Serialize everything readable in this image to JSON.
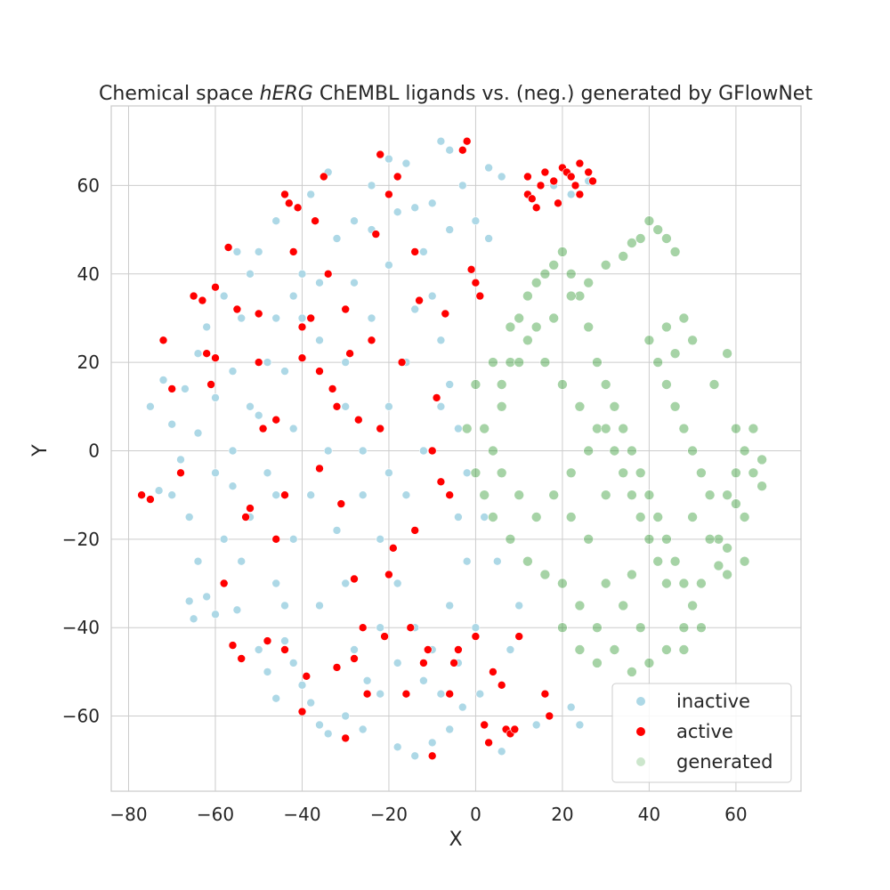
{
  "chart_data": {
    "type": "scatter",
    "title_prefix": "Chemical space ",
    "title_italic": "hERG",
    "title_suffix": " ChEMBL ligands vs. (neg.) generated by GFlowNet",
    "xlabel": "X",
    "ylabel": "Y",
    "xlim": [
      -84,
      75
    ],
    "ylim": [
      -77,
      78
    ],
    "xticks": [
      -80,
      -60,
      -40,
      -20,
      0,
      20,
      40,
      60
    ],
    "yticks": [
      -60,
      -40,
      -20,
      0,
      20,
      40,
      60
    ],
    "xtick_labels": [
      "−80",
      "−60",
      "−40",
      "−20",
      "0",
      "20",
      "40",
      "60"
    ],
    "ytick_labels": [
      "−60",
      "−40",
      "−20",
      "0",
      "20",
      "40",
      "60"
    ],
    "grid": true,
    "legend_position": "lower-right",
    "series": [
      {
        "name": "inactive",
        "color": "#add8e6"
      },
      {
        "name": "active",
        "color": "#ff0000"
      },
      {
        "name": "generated",
        "color": "#008000"
      }
    ],
    "points": {
      "inactive": [
        [
          -75,
          10
        ],
        [
          -72,
          16
        ],
        [
          -70,
          6
        ],
        [
          -68,
          -5
        ],
        [
          -66,
          -15
        ],
        [
          -64,
          -25
        ],
        [
          -62,
          -33
        ],
        [
          -60,
          -37
        ],
        [
          -58,
          -20
        ],
        [
          -56,
          -8
        ],
        [
          -54,
          30
        ],
        [
          -52,
          40
        ],
        [
          -50,
          45
        ],
        [
          -48,
          20
        ],
        [
          -46,
          -30
        ],
        [
          -44,
          -43
        ],
        [
          -42,
          -48
        ],
        [
          -40,
          -53
        ],
        [
          -38,
          -57
        ],
        [
          -36,
          -62
        ],
        [
          -34,
          -64
        ],
        [
          -30,
          -60
        ],
        [
          -26,
          -63
        ],
        [
          -22,
          -55
        ],
        [
          -18,
          -67
        ],
        [
          -14,
          -69
        ],
        [
          -10,
          -66
        ],
        [
          -6,
          -63
        ],
        [
          -3,
          -58
        ],
        [
          1,
          -55
        ],
        [
          4,
          -50
        ],
        [
          8,
          -45
        ],
        [
          10,
          -35
        ],
        [
          5,
          -25
        ],
        [
          2,
          -15
        ],
        [
          -2,
          -5
        ],
        [
          -4,
          5
        ],
        [
          -6,
          15
        ],
        [
          -8,
          25
        ],
        [
          -10,
          35
        ],
        [
          -12,
          45
        ],
        [
          -14,
          55
        ],
        [
          -16,
          65
        ],
        [
          -6,
          68
        ],
        [
          -3,
          60
        ],
        [
          0,
          52
        ],
        [
          3,
          48
        ],
        [
          6,
          62
        ],
        [
          -24,
          60
        ],
        [
          -28,
          52
        ],
        [
          -32,
          48
        ],
        [
          -36,
          38
        ],
        [
          -40,
          30
        ],
        [
          -44,
          18
        ],
        [
          -50,
          8
        ],
        [
          -56,
          0
        ],
        [
          -60,
          -5
        ],
        [
          -64,
          4
        ],
        [
          -67,
          14
        ],
        [
          -70,
          -10
        ],
        [
          -73,
          -9
        ],
        [
          -62,
          28
        ],
        [
          -58,
          35
        ],
        [
          -55,
          45
        ],
        [
          -46,
          52
        ],
        [
          -38,
          58
        ],
        [
          -34,
          63
        ],
        [
          -20,
          66
        ],
        [
          -8,
          70
        ],
        [
          3,
          64
        ],
        [
          12,
          62
        ],
        [
          18,
          60
        ],
        [
          22,
          58
        ],
        [
          26,
          61
        ],
        [
          -30,
          10
        ],
        [
          -26,
          -10
        ],
        [
          -22,
          -20
        ],
        [
          -18,
          -30
        ],
        [
          -14,
          -40
        ],
        [
          -10,
          -45
        ],
        [
          -20,
          10
        ],
        [
          -16,
          20
        ],
        [
          -12,
          0
        ],
        [
          -24,
          30
        ],
        [
          -34,
          0
        ],
        [
          -38,
          -10
        ],
        [
          -42,
          -20
        ],
        [
          -46,
          -10
        ],
        [
          -30,
          -30
        ],
        [
          -28,
          -45
        ],
        [
          -25,
          -52
        ],
        [
          -12,
          -52
        ],
        [
          -4,
          -48
        ],
        [
          0,
          -40
        ],
        [
          -6,
          -35
        ],
        [
          -16,
          -10
        ],
        [
          -20,
          -5
        ],
        [
          -30,
          20
        ],
        [
          -36,
          25
        ],
        [
          -42,
          5
        ],
        [
          -48,
          -5
        ],
        [
          -52,
          -15
        ],
        [
          -54,
          -25
        ],
        [
          -40,
          40
        ],
        [
          -28,
          38
        ],
        [
          -20,
          42
        ],
        [
          -14,
          32
        ],
        [
          -8,
          10
        ],
        [
          -2,
          -25
        ],
        [
          -4,
          -15
        ],
        [
          -26,
          0
        ],
        [
          -32,
          -18
        ],
        [
          -36,
          -35
        ],
        [
          -44,
          -35
        ],
        [
          -22,
          -40
        ],
        [
          -18,
          -48
        ],
        [
          -8,
          -55
        ],
        [
          2,
          -62
        ],
        [
          6,
          -68
        ],
        [
          14,
          -62
        ],
        [
          22,
          -58
        ],
        [
          24,
          -62
        ],
        [
          -65,
          -38
        ],
        [
          -66,
          -34
        ],
        [
          -58,
          -30
        ],
        [
          -55,
          -36
        ],
        [
          -50,
          -45
        ],
        [
          -48,
          -50
        ],
        [
          -46,
          -56
        ],
        [
          -64,
          22
        ],
        [
          -68,
          -2
        ],
        [
          -60,
          12
        ],
        [
          -56,
          18
        ],
        [
          -52,
          10
        ],
        [
          -46,
          30
        ],
        [
          -42,
          35
        ],
        [
          -24,
          50
        ],
        [
          -18,
          54
        ],
        [
          -10,
          56
        ],
        [
          -6,
          50
        ]
      ],
      "active": [
        [
          -77,
          -10
        ],
        [
          -75,
          -11
        ],
        [
          -72,
          25
        ],
        [
          -70,
          14
        ],
        [
          -68,
          -5
        ],
        [
          -65,
          35
        ],
        [
          -63,
          34
        ],
        [
          -62,
          22
        ],
        [
          -61,
          15
        ],
        [
          -60,
          21
        ],
        [
          -60,
          37
        ],
        [
          -58,
          -30
        ],
        [
          -57,
          46
        ],
        [
          -56,
          -44
        ],
        [
          -55,
          32
        ],
        [
          -54,
          -47
        ],
        [
          -53,
          -15
        ],
        [
          -52,
          -13
        ],
        [
          -50,
          31
        ],
        [
          -49,
          5
        ],
        [
          -48,
          -43
        ],
        [
          -46,
          -20
        ],
        [
          -44,
          -45
        ],
        [
          -44,
          58
        ],
        [
          -43,
          56
        ],
        [
          -42,
          45
        ],
        [
          -41,
          55
        ],
        [
          -40,
          28
        ],
        [
          -40,
          -59
        ],
        [
          -39,
          -51
        ],
        [
          -38,
          30
        ],
        [
          -37,
          52
        ],
        [
          -36,
          18
        ],
        [
          -35,
          62
        ],
        [
          -34,
          40
        ],
        [
          -33,
          14
        ],
        [
          -32,
          -49
        ],
        [
          -31,
          -12
        ],
        [
          -30,
          32
        ],
        [
          -30,
          -65
        ],
        [
          -29,
          22
        ],
        [
          -28,
          -47
        ],
        [
          -27,
          7
        ],
        [
          -26,
          -40
        ],
        [
          -25,
          -55
        ],
        [
          -24,
          25
        ],
        [
          -23,
          49
        ],
        [
          -22,
          67
        ],
        [
          -21,
          -42
        ],
        [
          -20,
          58
        ],
        [
          -19,
          -22
        ],
        [
          -18,
          62
        ],
        [
          -17,
          20
        ],
        [
          -16,
          -55
        ],
        [
          -15,
          -40
        ],
        [
          -14,
          45
        ],
        [
          -13,
          34
        ],
        [
          -12,
          -48
        ],
        [
          -11,
          -45
        ],
        [
          -10,
          -69
        ],
        [
          -9,
          12
        ],
        [
          -8,
          -7
        ],
        [
          -7,
          31
        ],
        [
          -6,
          -55
        ],
        [
          -5,
          -48
        ],
        [
          -4,
          -45
        ],
        [
          -3,
          68
        ],
        [
          -2,
          70
        ],
        [
          -1,
          41
        ],
        [
          0,
          38
        ],
        [
          0,
          -42
        ],
        [
          1,
          35
        ],
        [
          2,
          -62
        ],
        [
          3,
          -66
        ],
        [
          4,
          -50
        ],
        [
          6,
          -53
        ],
        [
          7,
          -63
        ],
        [
          8,
          -64
        ],
        [
          9,
          -63
        ],
        [
          10,
          -42
        ],
        [
          12,
          62
        ],
        [
          12,
          58
        ],
        [
          13,
          57
        ],
        [
          14,
          55
        ],
        [
          15,
          60
        ],
        [
          16,
          63
        ],
        [
          16,
          -55
        ],
        [
          17,
          -60
        ],
        [
          18,
          61
        ],
        [
          19,
          56
        ],
        [
          20,
          64
        ],
        [
          21,
          63
        ],
        [
          22,
          62
        ],
        [
          23,
          60
        ],
        [
          24,
          65
        ],
        [
          24,
          58
        ],
        [
          26,
          63
        ],
        [
          27,
          61
        ],
        [
          -40,
          21
        ],
        [
          -46,
          7
        ],
        [
          -36,
          -4
        ],
        [
          -28,
          -29
        ],
        [
          -20,
          -28
        ],
        [
          -14,
          -18
        ],
        [
          -6,
          -10
        ],
        [
          -10,
          0
        ],
        [
          -22,
          5
        ],
        [
          -32,
          10
        ],
        [
          -50,
          20
        ],
        [
          -44,
          -10
        ]
      ],
      "generated": [
        [
          2,
          -10
        ],
        [
          4,
          0
        ],
        [
          6,
          10
        ],
        [
          8,
          20
        ],
        [
          10,
          30
        ],
        [
          12,
          35
        ],
        [
          14,
          38
        ],
        [
          16,
          40
        ],
        [
          18,
          42
        ],
        [
          20,
          45
        ],
        [
          22,
          40
        ],
        [
          24,
          35
        ],
        [
          26,
          28
        ],
        [
          28,
          20
        ],
        [
          30,
          15
        ],
        [
          32,
          10
        ],
        [
          34,
          5
        ],
        [
          36,
          0
        ],
        [
          38,
          -5
        ],
        [
          40,
          -10
        ],
        [
          42,
          -15
        ],
        [
          44,
          -20
        ],
        [
          46,
          -25
        ],
        [
          48,
          -30
        ],
        [
          50,
          -35
        ],
        [
          52,
          -40
        ],
        [
          48,
          -45
        ],
        [
          44,
          -45
        ],
        [
          40,
          -48
        ],
        [
          36,
          -50
        ],
        [
          32,
          -45
        ],
        [
          28,
          -40
        ],
        [
          24,
          -35
        ],
        [
          20,
          -30
        ],
        [
          16,
          -28
        ],
        [
          12,
          -25
        ],
        [
          8,
          -20
        ],
        [
          4,
          -15
        ],
        [
          0,
          -5
        ],
        [
          -2,
          5
        ],
        [
          0,
          15
        ],
        [
          4,
          20
        ],
        [
          8,
          28
        ],
        [
          12,
          25
        ],
        [
          16,
          20
        ],
        [
          20,
          15
        ],
        [
          24,
          10
        ],
        [
          28,
          5
        ],
        [
          32,
          0
        ],
        [
          36,
          -10
        ],
        [
          40,
          -20
        ],
        [
          44,
          -30
        ],
        [
          48,
          -40
        ],
        [
          52,
          -30
        ],
        [
          56,
          -20
        ],
        [
          58,
          -10
        ],
        [
          60,
          -5
        ],
        [
          62,
          0
        ],
        [
          64,
          -5
        ],
        [
          66,
          -8
        ],
        [
          62,
          -15
        ],
        [
          58,
          -22
        ],
        [
          56,
          -26
        ],
        [
          54,
          -10
        ],
        [
          52,
          -5
        ],
        [
          50,
          0
        ],
        [
          48,
          5
        ],
        [
          46,
          10
        ],
        [
          44,
          15
        ],
        [
          42,
          20
        ],
        [
          40,
          25
        ],
        [
          44,
          28
        ],
        [
          48,
          30
        ],
        [
          50,
          25
        ],
        [
          46,
          22
        ],
        [
          38,
          48
        ],
        [
          40,
          52
        ],
        [
          42,
          50
        ],
        [
          44,
          48
        ],
        [
          46,
          45
        ],
        [
          36,
          47
        ],
        [
          34,
          44
        ],
        [
          30,
          42
        ],
        [
          26,
          38
        ],
        [
          22,
          35
        ],
        [
          18,
          30
        ],
        [
          14,
          28
        ],
        [
          10,
          20
        ],
        [
          6,
          15
        ],
        [
          2,
          5
        ],
        [
          6,
          -5
        ],
        [
          10,
          -10
        ],
        [
          14,
          -15
        ],
        [
          18,
          -10
        ],
        [
          22,
          -5
        ],
        [
          26,
          0
        ],
        [
          30,
          5
        ],
        [
          34,
          -5
        ],
        [
          38,
          -15
        ],
        [
          42,
          -25
        ],
        [
          30,
          -30
        ],
        [
          34,
          -35
        ],
        [
          38,
          -40
        ],
        [
          26,
          -20
        ],
        [
          22,
          -15
        ],
        [
          30,
          -10
        ],
        [
          36,
          -28
        ],
        [
          24,
          -45
        ],
        [
          28,
          -48
        ],
        [
          20,
          -40
        ],
        [
          55,
          15
        ],
        [
          58,
          22
        ],
        [
          60,
          5
        ],
        [
          64,
          5
        ],
        [
          66,
          -2
        ],
        [
          62,
          -25
        ],
        [
          58,
          -28
        ],
        [
          54,
          -20
        ],
        [
          50,
          -15
        ],
        [
          60,
          -12
        ]
      ]
    }
  }
}
